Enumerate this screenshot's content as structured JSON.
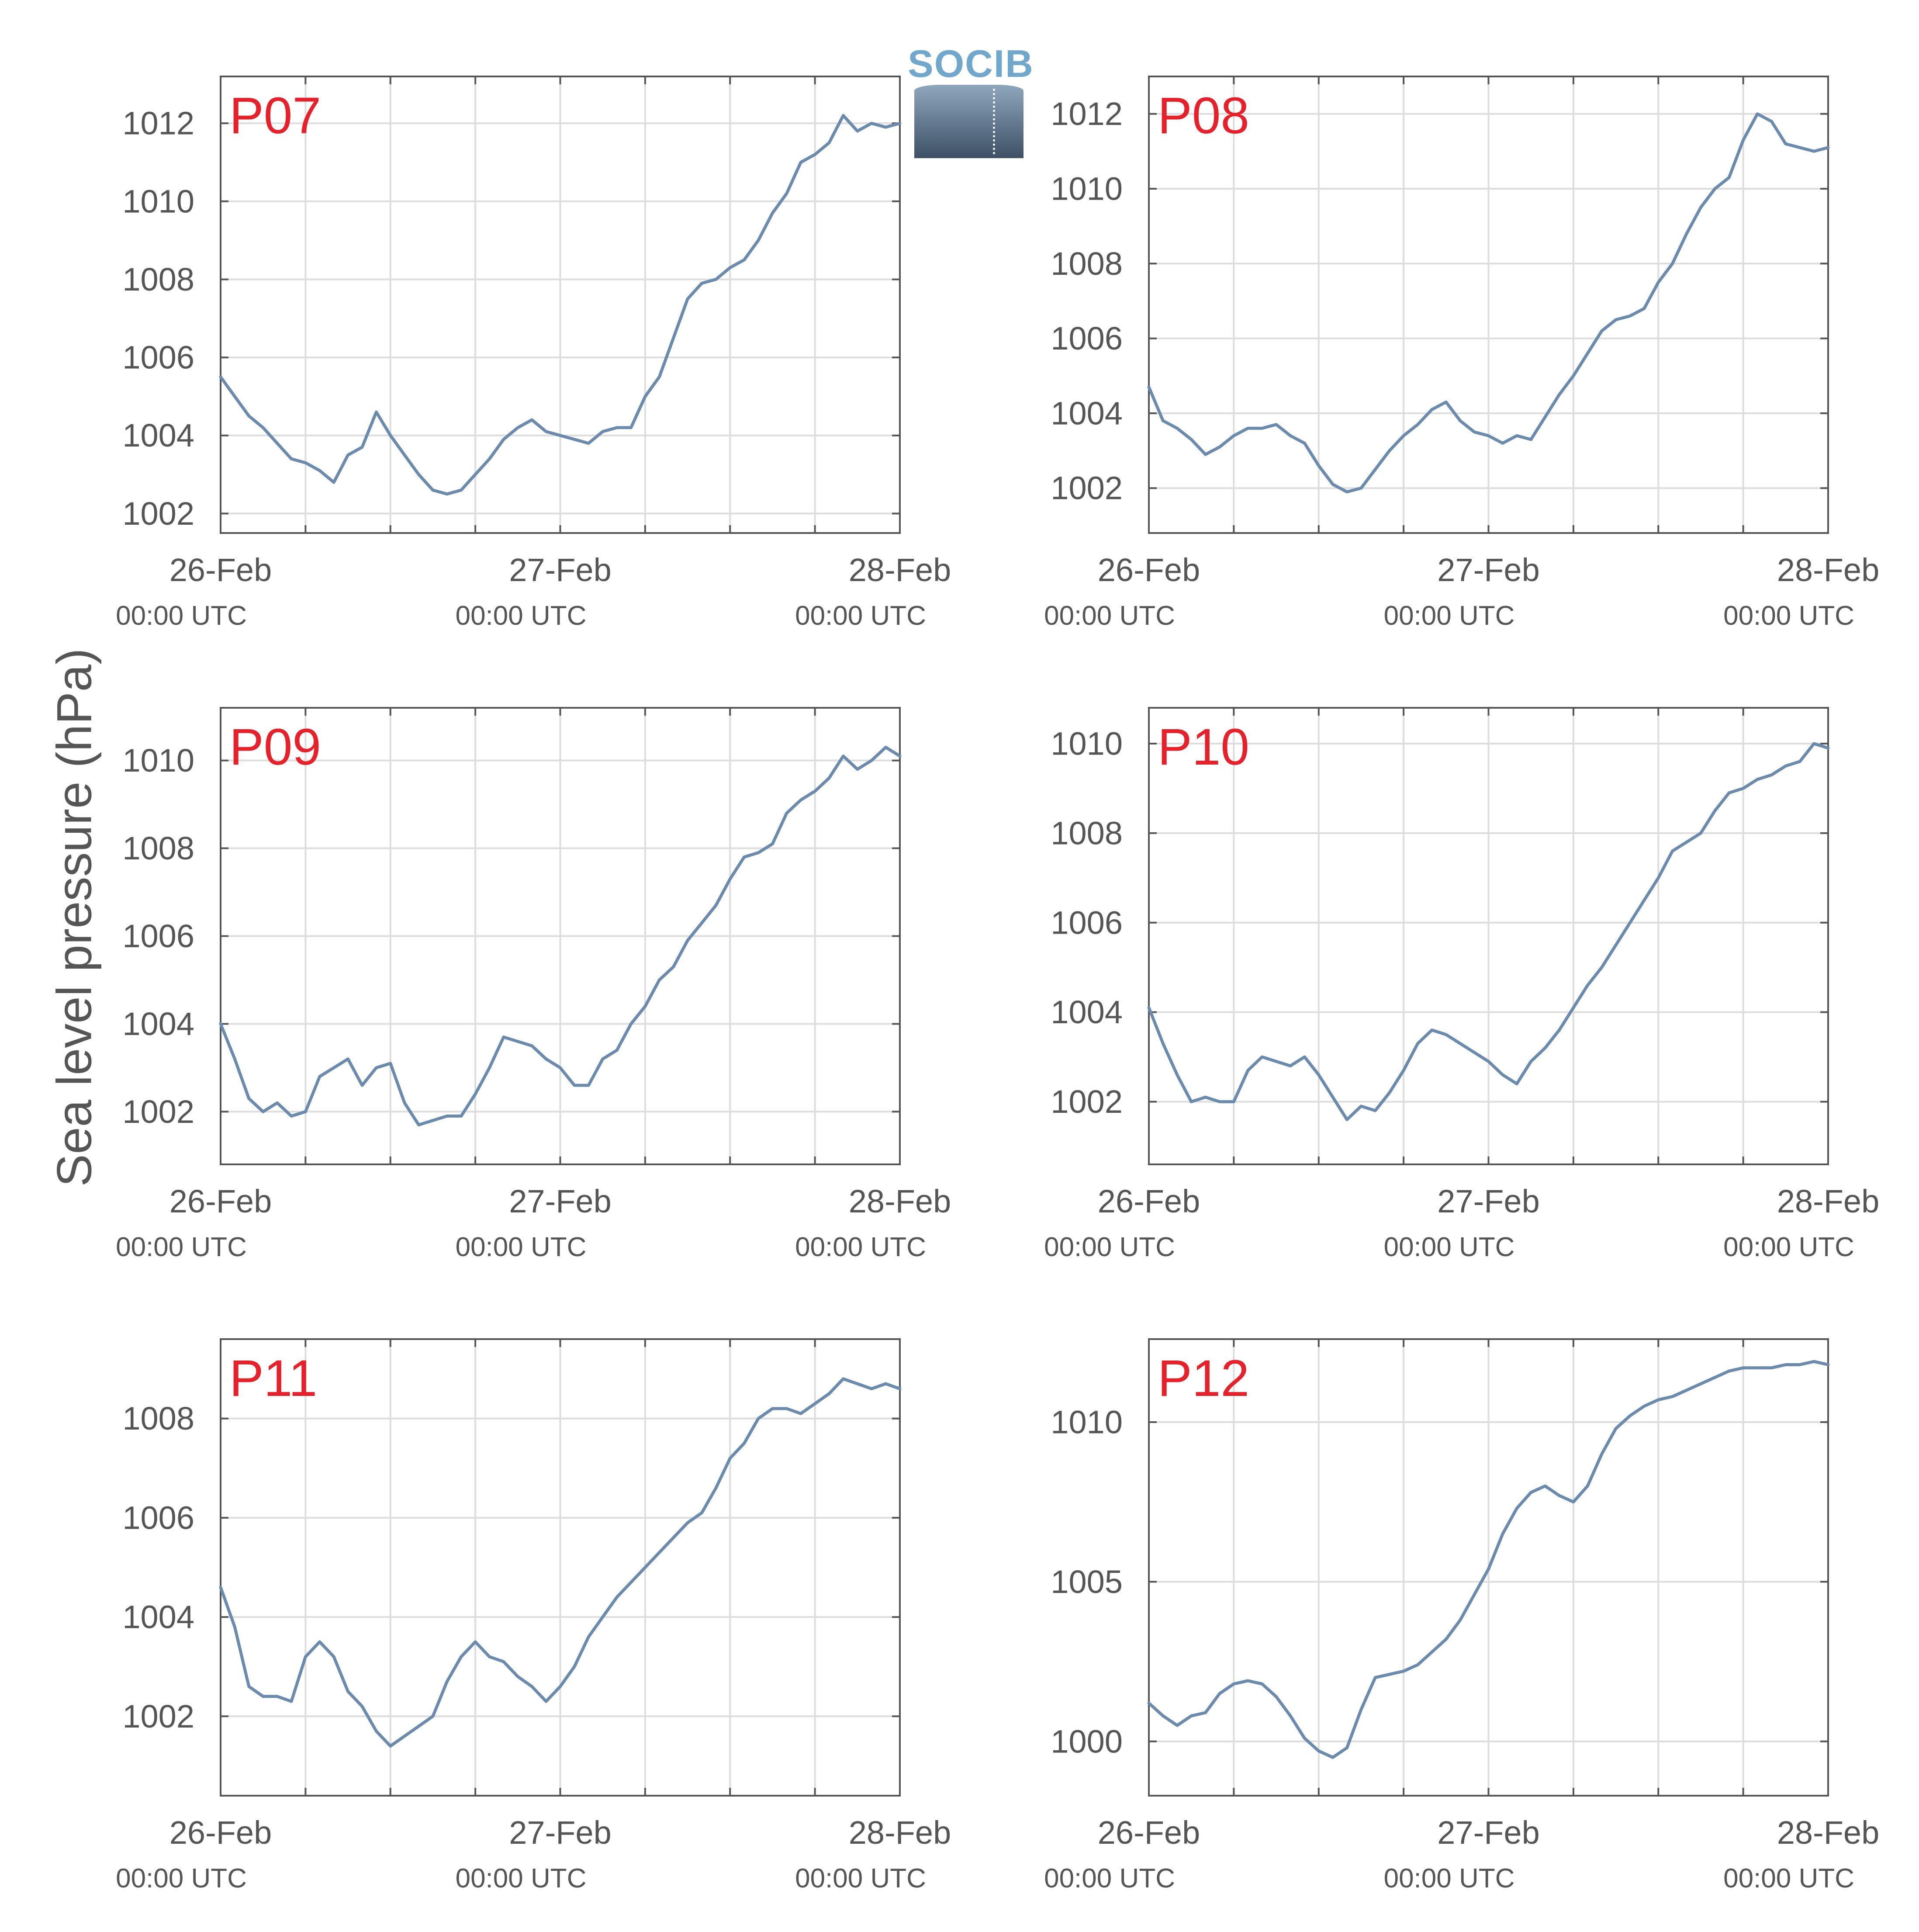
{
  "figure": {
    "ylabel": "Sea level pressure (hPa)",
    "logo_text": "SOCIB",
    "colors": {
      "line": "#6a8bad",
      "grid": "#dddddd",
      "axis": "#555555",
      "station_label": "#e8202a",
      "text": "#555555"
    }
  },
  "chart_data": [
    {
      "type": "line",
      "station": "P07",
      "x_tick_labels": [
        {
          "date": "26-Feb",
          "time": "00:00 UTC"
        },
        {
          "date": "27-Feb",
          "time": "00:00 UTC"
        },
        {
          "date": "28-Feb",
          "time": "00:00 UTC"
        }
      ],
      "xlim": [
        "2026-02-26 00:00",
        "2026-02-28 00:00"
      ],
      "ylim": [
        1001.5,
        1013.2
      ],
      "yticks": [
        1002,
        1004,
        1006,
        1008,
        1010,
        1012
      ],
      "grid": true,
      "x_hours": [
        0,
        1,
        2,
        3,
        4,
        5,
        6,
        7,
        8,
        9,
        10,
        11,
        12,
        13,
        14,
        15,
        16,
        17,
        18,
        19,
        20,
        21,
        22,
        23,
        24,
        25,
        26,
        27,
        28,
        29,
        30,
        31,
        32,
        33,
        34,
        35,
        36,
        37,
        38,
        39,
        40,
        41,
        42,
        43,
        44,
        45,
        46,
        47,
        48
      ],
      "y": [
        1005.5,
        1005.0,
        1004.5,
        1004.2,
        1003.8,
        1003.4,
        1003.3,
        1003.1,
        1002.8,
        1003.5,
        1003.7,
        1004.6,
        1004.0,
        1003.5,
        1003.0,
        1002.6,
        1002.5,
        1002.6,
        1003.0,
        1003.4,
        1003.9,
        1004.2,
        1004.4,
        1004.1,
        1004.0,
        1003.9,
        1003.8,
        1004.1,
        1004.2,
        1004.2,
        1005.0,
        1005.5,
        1006.5,
        1007.5,
        1007.9,
        1008.0,
        1008.3,
        1008.5,
        1009.0,
        1009.7,
        1010.2,
        1011.0,
        1011.2,
        1011.5,
        1012.2,
        1011.8,
        1012.0,
        1011.9,
        1012.0
      ]
    },
    {
      "type": "line",
      "station": "P08",
      "x_tick_labels": [
        {
          "date": "26-Feb",
          "time": "00:00 UTC"
        },
        {
          "date": "27-Feb",
          "time": "00:00 UTC"
        },
        {
          "date": "28-Feb",
          "time": "00:00 UTC"
        }
      ],
      "xlim": [
        "2026-02-26 00:00",
        "2026-02-28 00:00"
      ],
      "ylim": [
        1000.8,
        1013.0
      ],
      "yticks": [
        1002,
        1004,
        1006,
        1008,
        1010,
        1012
      ],
      "grid": true,
      "x_hours": [
        0,
        1,
        2,
        3,
        4,
        5,
        6,
        7,
        8,
        9,
        10,
        11,
        12,
        13,
        14,
        15,
        16,
        17,
        18,
        19,
        20,
        21,
        22,
        23,
        24,
        25,
        26,
        27,
        28,
        29,
        30,
        31,
        32,
        33,
        34,
        35,
        36,
        37,
        38,
        39,
        40,
        41,
        42,
        43,
        44,
        45,
        46,
        47,
        48
      ],
      "y": [
        1004.7,
        1003.8,
        1003.6,
        1003.3,
        1002.9,
        1003.1,
        1003.4,
        1003.6,
        1003.6,
        1003.7,
        1003.4,
        1003.2,
        1002.6,
        1002.1,
        1001.9,
        1002.0,
        1002.5,
        1003.0,
        1003.4,
        1003.7,
        1004.1,
        1004.3,
        1003.8,
        1003.5,
        1003.4,
        1003.2,
        1003.4,
        1003.3,
        1003.9,
        1004.5,
        1005.0,
        1005.6,
        1006.2,
        1006.5,
        1006.6,
        1006.8,
        1007.5,
        1008.0,
        1008.8,
        1009.5,
        1010.0,
        1010.3,
        1011.3,
        1012.0,
        1011.8,
        1011.2,
        1011.1,
        1011.0,
        1011.1
      ]
    },
    {
      "type": "line",
      "station": "P09",
      "x_tick_labels": [
        {
          "date": "26-Feb",
          "time": "00:00 UTC"
        },
        {
          "date": "27-Feb",
          "time": "00:00 UTC"
        },
        {
          "date": "28-Feb",
          "time": "00:00 UTC"
        }
      ],
      "xlim": [
        "2026-02-26 00:00",
        "2026-02-28 00:00"
      ],
      "ylim": [
        1000.8,
        1011.2
      ],
      "yticks": [
        1002,
        1004,
        1006,
        1008,
        1010
      ],
      "grid": true,
      "x_hours": [
        0,
        1,
        2,
        3,
        4,
        5,
        6,
        7,
        8,
        9,
        10,
        11,
        12,
        13,
        14,
        15,
        16,
        17,
        18,
        19,
        20,
        21,
        22,
        23,
        24,
        25,
        26,
        27,
        28,
        29,
        30,
        31,
        32,
        33,
        34,
        35,
        36,
        37,
        38,
        39,
        40,
        41,
        42,
        43,
        44,
        45,
        46,
        47,
        48
      ],
      "y": [
        1004.0,
        1003.2,
        1002.3,
        1002.0,
        1002.2,
        1001.9,
        1002.0,
        1002.8,
        1003.0,
        1003.2,
        1002.6,
        1003.0,
        1003.1,
        1002.2,
        1001.7,
        1001.8,
        1001.9,
        1001.9,
        1002.4,
        1003.0,
        1003.7,
        1003.6,
        1003.5,
        1003.2,
        1003.0,
        1002.6,
        1002.6,
        1003.2,
        1003.4,
        1004.0,
        1004.4,
        1005.0,
        1005.3,
        1005.9,
        1006.3,
        1006.7,
        1007.3,
        1007.8,
        1007.9,
        1008.1,
        1008.8,
        1009.1,
        1009.3,
        1009.6,
        1010.1,
        1009.8,
        1010.0,
        1010.3,
        1010.1
      ]
    },
    {
      "type": "line",
      "station": "P10",
      "x_tick_labels": [
        {
          "date": "26-Feb",
          "time": "00:00 UTC"
        },
        {
          "date": "27-Feb",
          "time": "00:00 UTC"
        },
        {
          "date": "28-Feb",
          "time": "00:00 UTC"
        }
      ],
      "xlim": [
        "2026-02-26 00:00",
        "2026-02-28 00:00"
      ],
      "ylim": [
        1000.6,
        1010.8
      ],
      "yticks": [
        1002,
        1004,
        1006,
        1008,
        1010
      ],
      "grid": true,
      "x_hours": [
        0,
        1,
        2,
        3,
        4,
        5,
        6,
        7,
        8,
        9,
        10,
        11,
        12,
        13,
        14,
        15,
        16,
        17,
        18,
        19,
        20,
        21,
        22,
        23,
        24,
        25,
        26,
        27,
        28,
        29,
        30,
        31,
        32,
        33,
        34,
        35,
        36,
        37,
        38,
        39,
        40,
        41,
        42,
        43,
        44,
        45,
        46,
        47,
        48
      ],
      "y": [
        1004.1,
        1003.3,
        1002.6,
        1002.0,
        1002.1,
        1002.0,
        1002.0,
        1002.7,
        1003.0,
        1002.9,
        1002.8,
        1003.0,
        1002.6,
        1002.1,
        1001.6,
        1001.9,
        1001.8,
        1002.2,
        1002.7,
        1003.3,
        1003.6,
        1003.5,
        1003.3,
        1003.1,
        1002.9,
        1002.6,
        1002.4,
        1002.9,
        1003.2,
        1003.6,
        1004.1,
        1004.6,
        1005.0,
        1005.5,
        1006.0,
        1006.5,
        1007.0,
        1007.6,
        1007.8,
        1008.0,
        1008.5,
        1008.9,
        1009.0,
        1009.2,
        1009.3,
        1009.5,
        1009.6,
        1010.0,
        1009.9
      ]
    },
    {
      "type": "line",
      "station": "P11",
      "x_tick_labels": [
        {
          "date": "26-Feb",
          "time": "00:00 UTC"
        },
        {
          "date": "27-Feb",
          "time": "00:00 UTC"
        },
        {
          "date": "28-Feb",
          "time": "00:00 UTC"
        }
      ],
      "xlim": [
        "2026-02-26 00:00",
        "2026-02-28 00:00"
      ],
      "ylim": [
        1000.4,
        1009.6
      ],
      "yticks": [
        1002,
        1004,
        1006,
        1008
      ],
      "grid": true,
      "x_hours": [
        0,
        1,
        2,
        3,
        4,
        5,
        6,
        7,
        8,
        9,
        10,
        11,
        12,
        13,
        14,
        15,
        16,
        17,
        18,
        19,
        20,
        21,
        22,
        23,
        24,
        25,
        26,
        27,
        28,
        29,
        30,
        31,
        32,
        33,
        34,
        35,
        36,
        37,
        38,
        39,
        40,
        41,
        42,
        43,
        44,
        45,
        46,
        47,
        48
      ],
      "y": [
        1004.6,
        1003.8,
        1002.6,
        1002.4,
        1002.4,
        1002.3,
        1003.2,
        1003.5,
        1003.2,
        1002.5,
        1002.2,
        1001.7,
        1001.4,
        1001.6,
        1001.8,
        1002.0,
        1002.7,
        1003.2,
        1003.5,
        1003.2,
        1003.1,
        1002.8,
        1002.6,
        1002.3,
        1002.6,
        1003.0,
        1003.6,
        1004.0,
        1004.4,
        1004.7,
        1005.0,
        1005.3,
        1005.6,
        1005.9,
        1006.1,
        1006.6,
        1007.2,
        1007.5,
        1008.0,
        1008.2,
        1008.2,
        1008.1,
        1008.3,
        1008.5,
        1008.8,
        1008.7,
        1008.6,
        1008.7,
        1008.6
      ]
    },
    {
      "type": "line",
      "station": "P12",
      "x_tick_labels": [
        {
          "date": "26-Feb",
          "time": "00:00 UTC"
        },
        {
          "date": "27-Feb",
          "time": "00:00 UTC"
        },
        {
          "date": "28-Feb",
          "time": "00:00 UTC"
        }
      ],
      "xlim": [
        "2026-02-26 00:00",
        "2026-02-28 00:00"
      ],
      "ylim": [
        998.3,
        1012.6
      ],
      "yticks": [
        1000,
        1005,
        1010
      ],
      "grid": true,
      "x_hours": [
        0,
        1,
        2,
        3,
        4,
        5,
        6,
        7,
        8,
        9,
        10,
        11,
        12,
        13,
        14,
        15,
        16,
        17,
        18,
        19,
        20,
        21,
        22,
        23,
        24,
        25,
        26,
        27,
        28,
        29,
        30,
        31,
        32,
        33,
        34,
        35,
        36,
        37,
        38,
        39,
        40,
        41,
        42,
        43,
        44,
        45,
        46,
        47,
        48
      ],
      "y": [
        1001.2,
        1000.8,
        1000.5,
        1000.8,
        1000.9,
        1001.5,
        1001.8,
        1001.9,
        1001.8,
        1001.4,
        1000.8,
        1000.1,
        999.7,
        999.5,
        999.8,
        1001.0,
        1002.0,
        1002.1,
        1002.2,
        1002.4,
        1002.8,
        1003.2,
        1003.8,
        1004.6,
        1005.4,
        1006.5,
        1007.3,
        1007.8,
        1008.0,
        1007.7,
        1007.5,
        1008.0,
        1009.0,
        1009.8,
        1010.2,
        1010.5,
        1010.7,
        1010.8,
        1011.0,
        1011.2,
        1011.4,
        1011.6,
        1011.7,
        1011.7,
        1011.7,
        1011.8,
        1011.8,
        1011.9,
        1011.8
      ]
    }
  ]
}
